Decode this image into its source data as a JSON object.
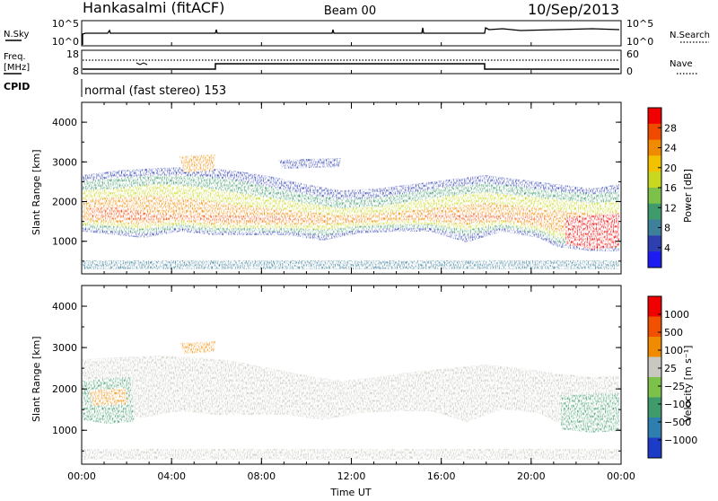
{
  "header": {
    "station": "Hankasalmi (fitACF)",
    "beam": "Beam 00",
    "date": "10/Sep/2013"
  },
  "status_panels": {
    "nsky": {
      "label": "N.Sky",
      "ticks": [
        "10^5",
        "10^0"
      ]
    },
    "nsearch": {
      "label": "N.Search",
      "ticks": [
        "10^5",
        "10^0"
      ]
    },
    "freq": {
      "label_line1": "Freq.",
      "label_line2": "[MHz]",
      "ticks": [
        "18",
        "8"
      ]
    },
    "nave": {
      "label": "Nave",
      "ticks": [
        "60",
        "0"
      ]
    },
    "cpid": {
      "label": "CPID",
      "value": "normal (fast stereo) 153"
    }
  },
  "chart_data": [
    {
      "type": "heatmap",
      "title": "",
      "xlabel": "",
      "ylabel": "Slant Range [km]",
      "xlim": [
        0,
        24
      ],
      "ylim": [
        180,
        4500
      ],
      "x_ticks": [
        "00:00",
        "04:00",
        "08:00",
        "12:00",
        "16:00",
        "20:00",
        "00:00"
      ],
      "y_ticks": [
        "1000",
        "2000",
        "3000",
        "4000"
      ],
      "colorbar": {
        "label": "Power [dB]",
        "ticks": [
          "28",
          "24",
          "20",
          "16",
          "12",
          "8",
          "4"
        ],
        "range": [
          0,
          30
        ],
        "colors": [
          "#1c1cf0",
          "#2e3fb0",
          "#3e7f9a",
          "#3f9a6c",
          "#7cc14a",
          "#c8d820",
          "#f2c200",
          "#f08a00",
          "#f04a00",
          "#f00000"
        ]
      },
      "series": [
        {
          "x": [
            0,
            1,
            2,
            3,
            4,
            5,
            6,
            7,
            8,
            9,
            10,
            11,
            12,
            13,
            14,
            15,
            16,
            17,
            18,
            19,
            20,
            21,
            22,
            23,
            24
          ],
          "y": [
            1500,
            1600,
            1550,
            1400,
            1800,
            1500,
            1400,
            1450,
            1500,
            1550,
            1500,
            1450,
            1350,
            1400,
            1500,
            1600,
            1650,
            1500,
            1450,
            1500,
            1500,
            1800,
            1200,
            1200,
            1250
          ]
        }
      ]
    },
    {
      "type": "heatmap",
      "title": "",
      "xlabel": "Time UT",
      "ylabel": "Slant Range [km]",
      "xlim": [
        0,
        24
      ],
      "ylim": [
        180,
        4500
      ],
      "x_ticks": [
        "00:00",
        "04:00",
        "08:00",
        "12:00",
        "16:00",
        "20:00",
        "00:00"
      ],
      "y_ticks": [
        "1000",
        "2000",
        "3000",
        "4000"
      ],
      "colorbar": {
        "label": "Velocity [m s⁻¹]",
        "ticks": [
          "1000",
          "500",
          "100",
          "25",
          "−25",
          "−100",
          "−500",
          "−1000"
        ],
        "range": [
          -1000,
          1000
        ],
        "colors": [
          "#1c3cc8",
          "#2e7fb0",
          "#3f9a6c",
          "#7cc14a",
          "#c8c8c0",
          "#f08a00",
          "#f05000",
          "#f00000"
        ]
      }
    }
  ]
}
